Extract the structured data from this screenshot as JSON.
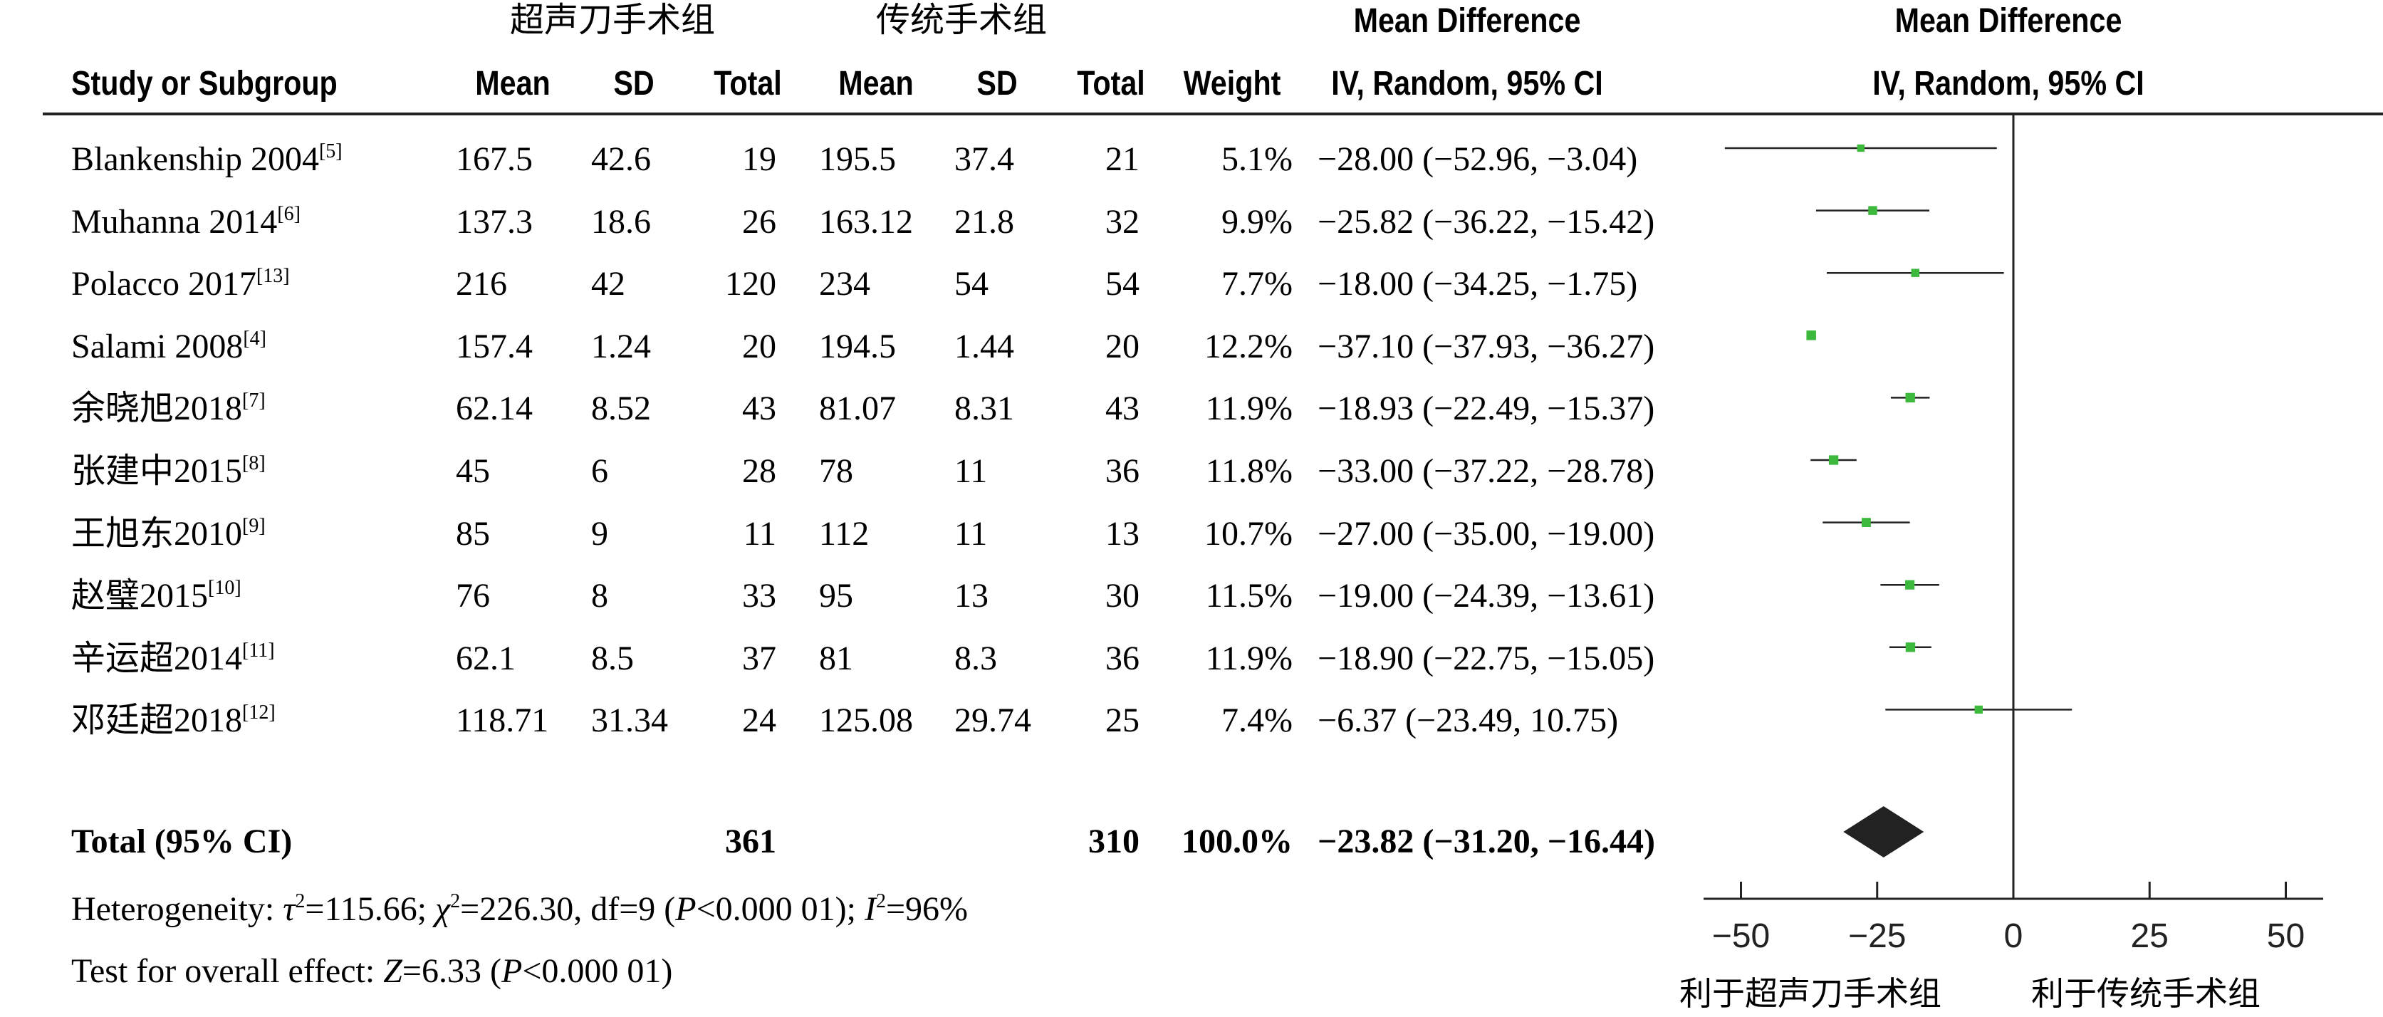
{
  "header": {
    "group1": "超声刀手术组",
    "group2": "传统手术组",
    "md_title": "Mean Difference",
    "md_title_plot": "Mean Difference",
    "columns": {
      "study": "Study or Subgroup",
      "mean1": "Mean",
      "sd1": "SD",
      "total1": "Total",
      "mean2": "Mean",
      "sd2": "SD",
      "total2": "Total",
      "weight": "Weight",
      "ci": "IV, Random, 95% CI",
      "ci_plot": "IV, Random, 95% CI"
    }
  },
  "rows": [
    {
      "study": "Blankenship 2004",
      "ref": "[5]",
      "mean1": "167.5",
      "sd1": "42.6",
      "total1": "19",
      "mean2": "195.5",
      "sd2": "37.4",
      "total2": "21",
      "weight": "5.1%",
      "ci": "−28.00 (−52.96, −3.04)"
    },
    {
      "study": "Muhanna 2014",
      "ref": "[6]",
      "mean1": "137.3",
      "sd1": "18.6",
      "total1": "26",
      "mean2": "163.12",
      "sd2": "21.8",
      "total2": "32",
      "weight": "9.9%",
      "ci": "−25.82 (−36.22, −15.42)"
    },
    {
      "study": "Polacco 2017",
      "ref": "[13]",
      "mean1": "216",
      "sd1": "42",
      "total1": "120",
      "mean2": "234",
      "sd2": "54",
      "total2": "54",
      "weight": "7.7%",
      "ci": "−18.00 (−34.25, −1.75)"
    },
    {
      "study": "Salami 2008",
      "ref": "[4]",
      "mean1": "157.4",
      "sd1": "1.24",
      "total1": "20",
      "mean2": "194.5",
      "sd2": "1.44",
      "total2": "20",
      "weight": "12.2%",
      "ci": "−37.10 (−37.93, −36.27)"
    },
    {
      "study": "余晓旭2018",
      "ref": "[7]",
      "mean1": "62.14",
      "sd1": "8.52",
      "total1": "43",
      "mean2": "81.07",
      "sd2": "8.31",
      "total2": "43",
      "weight": "11.9%",
      "ci": "−18.93 (−22.49, −15.37)"
    },
    {
      "study": "张建中2015",
      "ref": "[8]",
      "mean1": "45",
      "sd1": "6",
      "total1": "28",
      "mean2": "78",
      "sd2": "11",
      "total2": "36",
      "weight": "11.8%",
      "ci": "−33.00 (−37.22, −28.78)"
    },
    {
      "study": "王旭东2010",
      "ref": "[9]",
      "mean1": "85",
      "sd1": "9",
      "total1": "11",
      "mean2": "112",
      "sd2": "11",
      "total2": "13",
      "weight": "10.7%",
      "ci": "−27.00 (−35.00, −19.00)"
    },
    {
      "study": "赵璧2015",
      "ref": "[10]",
      "mean1": "76",
      "sd1": "8",
      "total1": "33",
      "mean2": "95",
      "sd2": "13",
      "total2": "30",
      "weight": "11.5%",
      "ci": "−19.00 (−24.39, −13.61)"
    },
    {
      "study": "辛运超2014",
      "ref": "[11]",
      "mean1": "62.1",
      "sd1": "8.5",
      "total1": "37",
      "mean2": "81",
      "sd2": "8.3",
      "total2": "36",
      "weight": "11.9%",
      "ci": "−18.90 (−22.75, −15.05)"
    },
    {
      "study": "邓廷超2018",
      "ref": "[12]",
      "mean1": "118.71",
      "sd1": "31.34",
      "total1": "24",
      "mean2": "125.08",
      "sd2": "29.74",
      "total2": "25",
      "weight": "7.4%",
      "ci": "−6.37 (−23.49, 10.75)"
    }
  ],
  "total_row": {
    "label": "Total (95% CI)",
    "total1": "361",
    "total2": "310",
    "weight": "100.0%",
    "ci": "−23.82 (−31.20, −16.44)"
  },
  "footer": {
    "heterogeneity": {
      "prefix": "Heterogeneity: ",
      "tau_sym": "τ",
      "tau_sup": "2",
      "tau_val": "=115.66; ",
      "chi_sym": "χ",
      "chi_sup": "2",
      "chi_val": "=226.30, df=9 (",
      "p_sym": "P",
      "p_val": "<0.000 01); ",
      "i_sym": "I",
      "i_sup": "2",
      "i_val": "=96%"
    },
    "overall": {
      "prefix": "Test for overall effect: ",
      "z_sym": "Z",
      "z_val": "=6.33 (",
      "p_sym": "P",
      "p_val": "<0.000 01)"
    }
  },
  "axis": {
    "ticks": [
      "−50",
      "−25",
      "0",
      "25",
      "50"
    ],
    "favours_left": "利于超声刀手术组",
    "favours_right": "利于传统手术组"
  },
  "colors": {
    "point": "#3cb83c",
    "diamond": "#222222",
    "line": "#222222"
  },
  "chart_data": {
    "type": "forest",
    "title": "Mean Difference IV, Random, 95% CI",
    "xlim": [
      -50,
      50
    ],
    "xticks": [
      -50,
      -25,
      0,
      25,
      50
    ],
    "null_line": 0,
    "studies": [
      {
        "name": "Blankenship 2004",
        "md": -28.0,
        "lo": -52.96,
        "hi": -3.04,
        "weight": 5.1
      },
      {
        "name": "Muhanna 2014",
        "md": -25.82,
        "lo": -36.22,
        "hi": -15.42,
        "weight": 9.9
      },
      {
        "name": "Polacco 2017",
        "md": -18.0,
        "lo": -34.25,
        "hi": -1.75,
        "weight": 7.7
      },
      {
        "name": "Salami 2008",
        "md": -37.1,
        "lo": -37.93,
        "hi": -36.27,
        "weight": 12.2
      },
      {
        "name": "余晓旭2018",
        "md": -18.93,
        "lo": -22.49,
        "hi": -15.37,
        "weight": 11.9
      },
      {
        "name": "张建中2015",
        "md": -33.0,
        "lo": -37.22,
        "hi": -28.78,
        "weight": 11.8
      },
      {
        "name": "王旭东2010",
        "md": -27.0,
        "lo": -35.0,
        "hi": -19.0,
        "weight": 10.7
      },
      {
        "name": "赵璧2015",
        "md": -19.0,
        "lo": -24.39,
        "hi": -13.61,
        "weight": 11.5
      },
      {
        "name": "辛运超2014",
        "md": -18.9,
        "lo": -22.75,
        "hi": -15.05,
        "weight": 11.9
      },
      {
        "name": "邓廷超2018",
        "md": -6.37,
        "lo": -23.49,
        "hi": 10.75,
        "weight": 7.4
      }
    ],
    "pooled": {
      "md": -23.82,
      "lo": -31.2,
      "hi": -16.44,
      "weight": 100.0
    }
  }
}
